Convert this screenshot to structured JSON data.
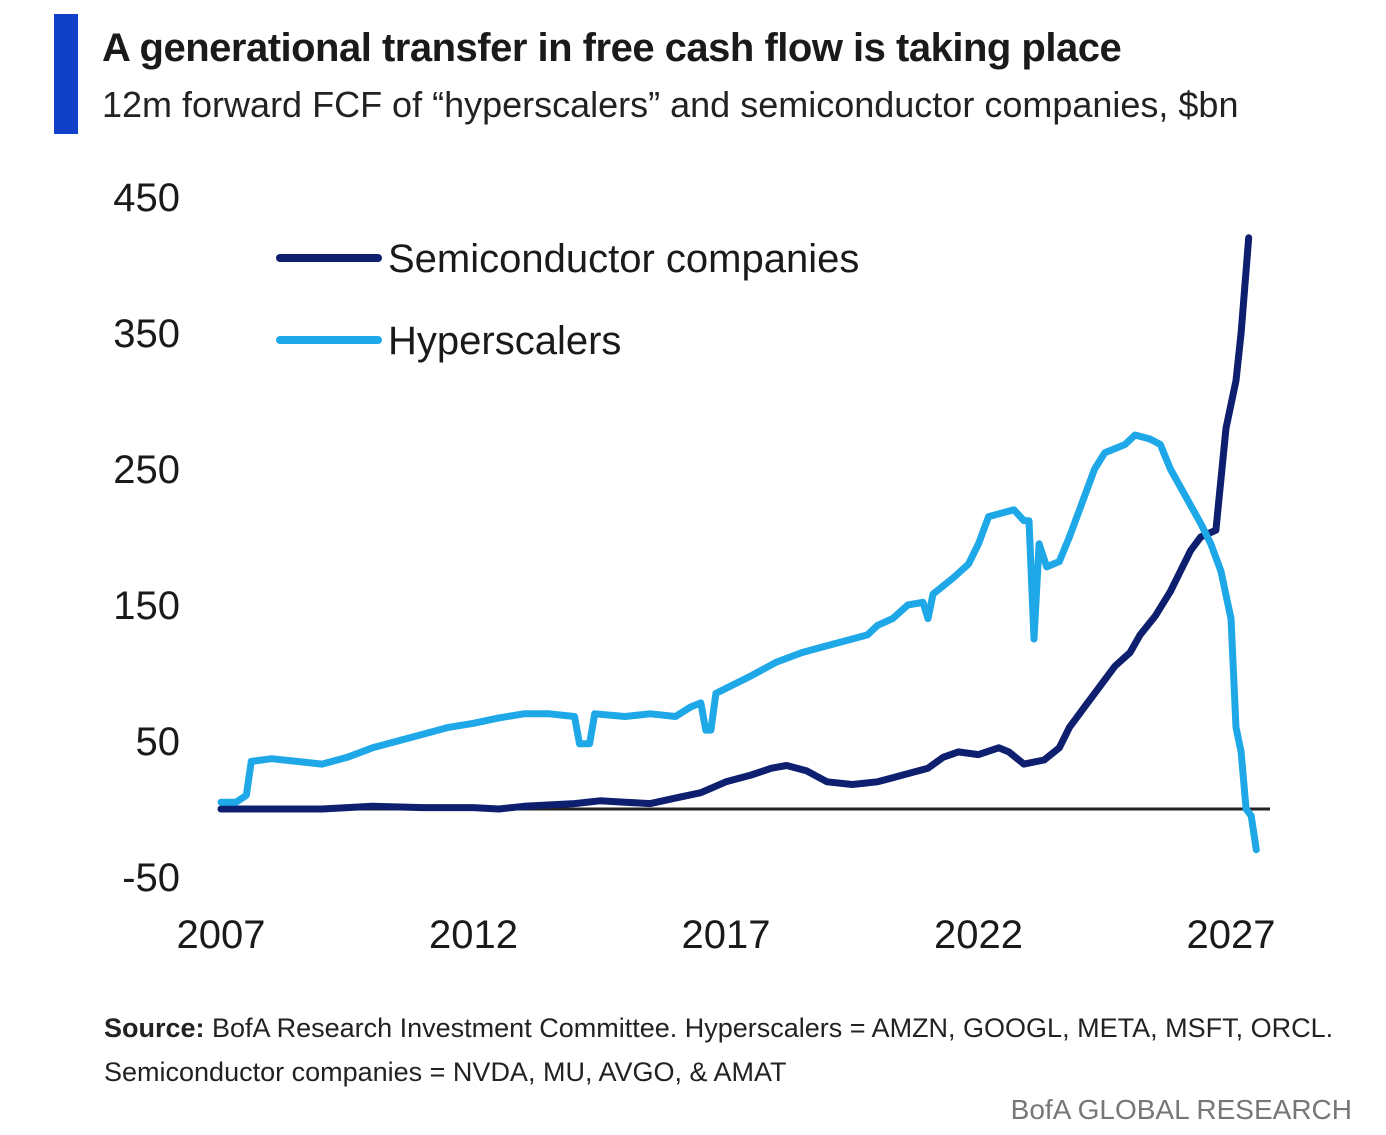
{
  "header": {
    "title": "A generational transfer in free cash flow is taking place",
    "subtitle": "12m forward FCF of “hyperscalers” and semiconductor companies, $bn",
    "accent_color": "#1040c8"
  },
  "footer": {
    "source_label": "Source:",
    "source_line1": " BofA Research Investment Committee. Hyperscalers = AMZN, GOOGL, META, MSFT, ORCL.",
    "source_line2": "Semiconductor companies = NVDA, MU, AVGO, & AMAT",
    "brand": "BofA GLOBAL RESEARCH"
  },
  "chart_data": {
    "type": "line",
    "title": "",
    "xlabel": "",
    "ylabel": "",
    "xlim": [
      2007,
      2027
    ],
    "ylim": [
      -50,
      450
    ],
    "x_ticks": [
      2007,
      2012,
      2017,
      2022,
      2027
    ],
    "y_ticks": [
      450,
      350,
      250,
      150,
      50,
      -50
    ],
    "grid": false,
    "zero_line": true,
    "legend_position": "top-left",
    "series": [
      {
        "name": "Semiconductor companies",
        "color": "#0d1f6e",
        "points": [
          [
            2007.0,
            0
          ],
          [
            2008.0,
            0
          ],
          [
            2009.0,
            0
          ],
          [
            2010.0,
            2
          ],
          [
            2011.0,
            1
          ],
          [
            2012.0,
            1
          ],
          [
            2012.5,
            0
          ],
          [
            2013.0,
            2
          ],
          [
            2014.0,
            4
          ],
          [
            2014.5,
            6
          ],
          [
            2015.0,
            5
          ],
          [
            2015.5,
            4
          ],
          [
            2016.0,
            8
          ],
          [
            2016.5,
            12
          ],
          [
            2017.0,
            20
          ],
          [
            2017.5,
            25
          ],
          [
            2017.9,
            30
          ],
          [
            2018.2,
            32
          ],
          [
            2018.6,
            28
          ],
          [
            2019.0,
            20
          ],
          [
            2019.5,
            18
          ],
          [
            2020.0,
            20
          ],
          [
            2020.5,
            25
          ],
          [
            2021.0,
            30
          ],
          [
            2021.3,
            38
          ],
          [
            2021.6,
            42
          ],
          [
            2022.0,
            40
          ],
          [
            2022.4,
            45
          ],
          [
            2022.6,
            42
          ],
          [
            2022.9,
            33
          ],
          [
            2023.3,
            36
          ],
          [
            2023.6,
            45
          ],
          [
            2023.8,
            60
          ],
          [
            2024.1,
            75
          ],
          [
            2024.4,
            90
          ],
          [
            2024.7,
            105
          ],
          [
            2025.0,
            115
          ],
          [
            2025.2,
            128
          ],
          [
            2025.5,
            142
          ],
          [
            2025.8,
            160
          ],
          [
            2026.0,
            175
          ],
          [
            2026.2,
            190
          ],
          [
            2026.4,
            200
          ],
          [
            2026.7,
            205
          ],
          [
            2026.9,
            280
          ],
          [
            2027.1,
            315
          ],
          [
            2027.2,
            350
          ],
          [
            2027.35,
            420
          ]
        ]
      },
      {
        "name": "Hyperscalers",
        "color": "#1ea8e8",
        "points": [
          [
            2007.0,
            5
          ],
          [
            2007.3,
            5
          ],
          [
            2007.5,
            10
          ],
          [
            2007.6,
            35
          ],
          [
            2008.0,
            37
          ],
          [
            2008.5,
            35
          ],
          [
            2009.0,
            33
          ],
          [
            2009.5,
            38
          ],
          [
            2010.0,
            45
          ],
          [
            2010.5,
            50
          ],
          [
            2011.0,
            55
          ],
          [
            2011.5,
            60
          ],
          [
            2012.0,
            63
          ],
          [
            2012.5,
            67
          ],
          [
            2013.0,
            70
          ],
          [
            2013.5,
            70
          ],
          [
            2014.0,
            68
          ],
          [
            2014.1,
            48
          ],
          [
            2014.3,
            48
          ],
          [
            2014.4,
            70
          ],
          [
            2015.0,
            68
          ],
          [
            2015.5,
            70
          ],
          [
            2016.0,
            68
          ],
          [
            2016.3,
            75
          ],
          [
            2016.5,
            78
          ],
          [
            2016.6,
            58
          ],
          [
            2016.7,
            58
          ],
          [
            2016.8,
            85
          ],
          [
            2017.5,
            98
          ],
          [
            2018.0,
            108
          ],
          [
            2018.5,
            115
          ],
          [
            2019.0,
            120
          ],
          [
            2019.5,
            125
          ],
          [
            2019.8,
            128
          ],
          [
            2020.0,
            135
          ],
          [
            2020.3,
            140
          ],
          [
            2020.6,
            150
          ],
          [
            2020.9,
            152
          ],
          [
            2021.0,
            140
          ],
          [
            2021.1,
            158
          ],
          [
            2021.5,
            170
          ],
          [
            2021.8,
            180
          ],
          [
            2022.0,
            195
          ],
          [
            2022.2,
            215
          ],
          [
            2022.7,
            220
          ],
          [
            2022.9,
            212
          ],
          [
            2023.0,
            212
          ],
          [
            2023.1,
            125
          ],
          [
            2023.2,
            195
          ],
          [
            2023.35,
            178
          ],
          [
            2023.6,
            182
          ],
          [
            2023.8,
            200
          ],
          [
            2024.0,
            220
          ],
          [
            2024.3,
            250
          ],
          [
            2024.5,
            262
          ],
          [
            2024.9,
            268
          ],
          [
            2025.1,
            275
          ],
          [
            2025.4,
            272
          ],
          [
            2025.6,
            268
          ],
          [
            2025.8,
            250
          ],
          [
            2026.1,
            230
          ],
          [
            2026.4,
            210
          ],
          [
            2026.6,
            195
          ],
          [
            2026.8,
            175
          ],
          [
            2027.0,
            140
          ],
          [
            2027.1,
            60
          ],
          [
            2027.2,
            42
          ],
          [
            2027.3,
            0
          ],
          [
            2027.4,
            -5
          ],
          [
            2027.5,
            -30
          ]
        ]
      }
    ]
  }
}
